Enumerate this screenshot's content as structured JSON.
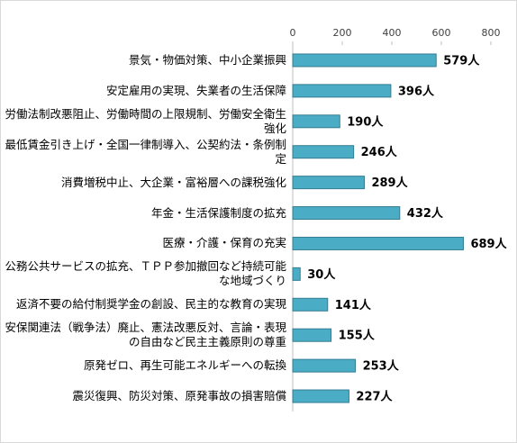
{
  "chart_data": {
    "type": "barh",
    "categories": [
      "景気・物価対策、中小企業振興",
      "安定雇用の実現、失業者の生活保障",
      "労働法制改悪阻止、労働時間の上限規制、労働安全衛生強化",
      "最低賃金引き上げ・全国一律制導入、公契約法・条例制定",
      "消費増税中止、大企業・富裕層への課税強化",
      "年金・生活保護制度の拡充",
      "医療・介護・保育の充実",
      "公務公共サービスの拡充、ＴＰＰ参加撤回など持続可能な地域づくり",
      "返済不要の給付制奨学金の創設、民主的な教育の実現",
      "安保関連法（戦争法）廃止、憲法改悪反対、言論・表現の自由など民主主義原則の尊重",
      "原発ゼロ、再生可能エネルギーへの転換",
      "震災復興、防災対策、原発事故の損害賠償"
    ],
    "values": [
      579,
      396,
      190,
      246,
      289,
      432,
      689,
      30,
      141,
      155,
      253,
      227
    ],
    "value_labels": [
      "579人",
      "396人",
      "190人",
      "246人",
      "289人",
      "432人",
      "689人",
      "30人",
      "141人",
      "155人",
      "253人",
      "227人"
    ],
    "color": "#4bacc6",
    "xlim": [
      0,
      800
    ],
    "xticks": [
      0,
      200,
      400,
      600,
      800
    ]
  }
}
